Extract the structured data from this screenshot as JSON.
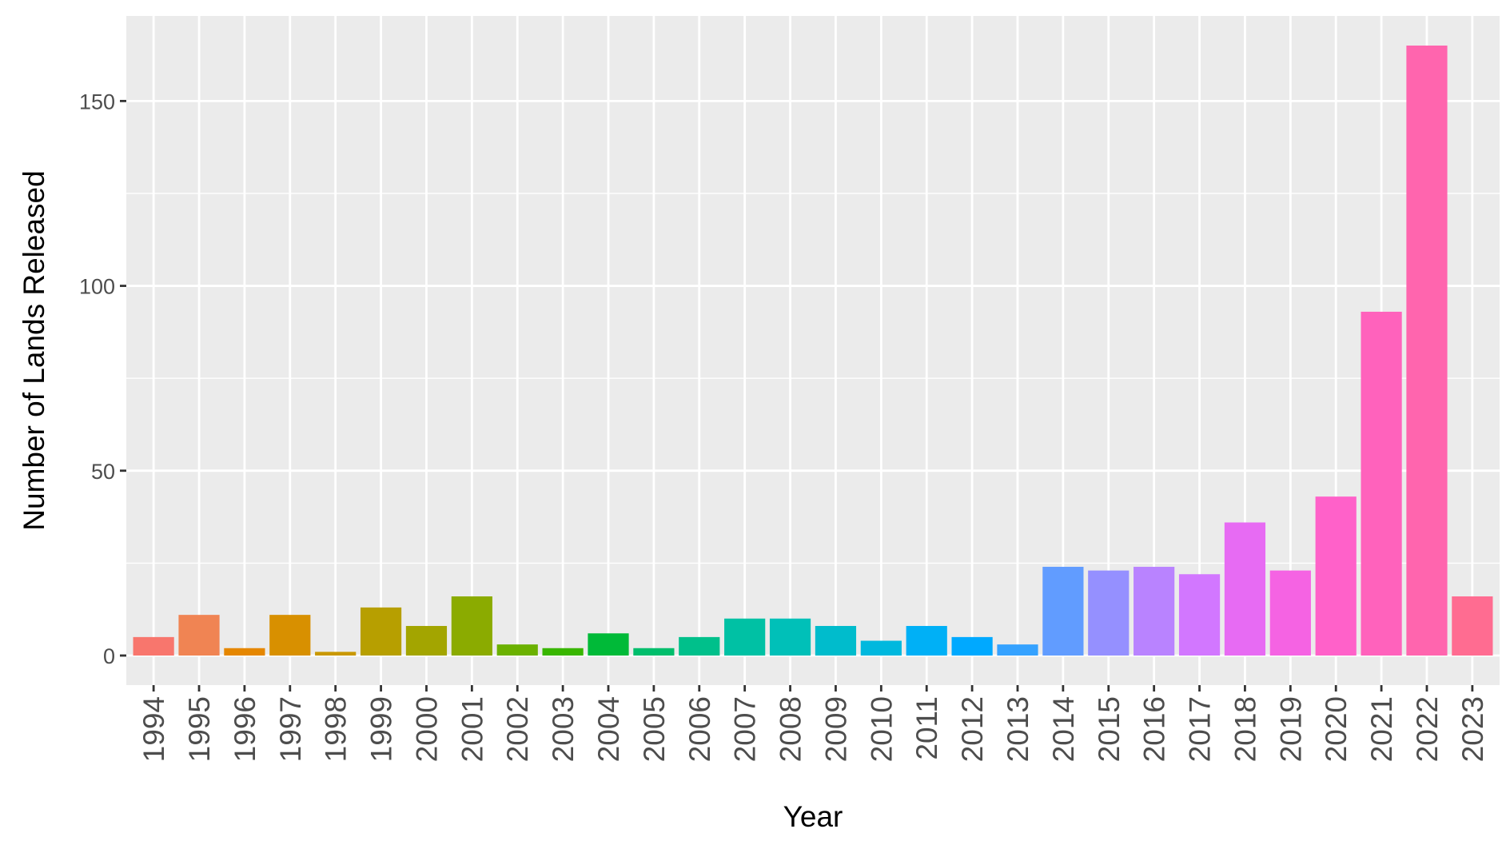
{
  "chart_data": {
    "type": "bar",
    "title": "",
    "xlabel": "Year",
    "ylabel": "Number of Lands Released",
    "categories": [
      "1994",
      "1995",
      "1996",
      "1997",
      "1998",
      "1999",
      "2000",
      "2001",
      "2002",
      "2003",
      "2004",
      "2005",
      "2006",
      "2007",
      "2008",
      "2009",
      "2010",
      "2011",
      "2012",
      "2013",
      "2014",
      "2015",
      "2016",
      "2017",
      "2018",
      "2019",
      "2020",
      "2021",
      "2022",
      "2023"
    ],
    "values": [
      5,
      11,
      2,
      11,
      1,
      13,
      8,
      16,
      3,
      2,
      6,
      2,
      5,
      10,
      10,
      8,
      4,
      8,
      5,
      3,
      24,
      23,
      24,
      22,
      36,
      23,
      43,
      93,
      165,
      16
    ],
    "colors": [
      "#F8766D",
      "#F08453",
      "#E58700",
      "#D89000",
      "#C99800",
      "#B79F00",
      "#A3A500",
      "#8BAB00",
      "#6BB100",
      "#39B600",
      "#00BA38",
      "#00BE6C",
      "#00C08B",
      "#00C1A4",
      "#00C0B8",
      "#00BCCC",
      "#00B8DE",
      "#00B0F6",
      "#00A9FF",
      "#35A2FF",
      "#619CFF",
      "#9590FF",
      "#B983FF",
      "#D277FF",
      "#E76BF3",
      "#F563E3",
      "#FF61C9",
      "#FF62BC",
      "#FF65AE",
      "#FF6C91"
    ],
    "yticks": [
      0,
      50,
      100,
      150
    ],
    "ylim": [
      -8,
      173
    ],
    "grid": true,
    "legend": "none",
    "panel_background": "#EBEBEB",
    "grid_color": "#FFFFFF"
  }
}
